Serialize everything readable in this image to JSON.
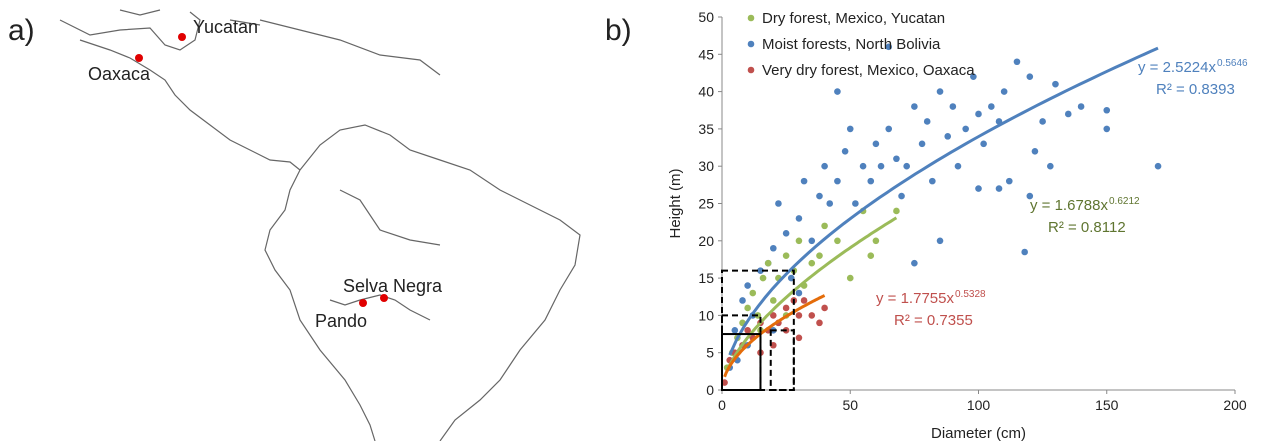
{
  "panel_labels": [
    "a)",
    "b)"
  ],
  "map": {
    "sites": [
      {
        "label": "Yucatan"
      },
      {
        "label": "Oaxaca"
      },
      {
        "label": "Selva Negra"
      },
      {
        "label": "Pando"
      }
    ]
  },
  "chart_data": {
    "type": "scatter",
    "xlabel": "Diameter (cm)",
    "ylabel": "Height (m)",
    "xlim": [
      0,
      200
    ],
    "ylim": [
      0,
      50
    ],
    "xticks": [
      0,
      50,
      100,
      150,
      200
    ],
    "yticks": [
      0,
      5,
      10,
      15,
      20,
      25,
      30,
      35,
      40,
      45,
      50
    ],
    "series": [
      {
        "name": "Dry forest, Mexico, Yucatan",
        "color": "#9bbb59",
        "x": [
          2,
          4,
          6,
          8,
          10,
          12,
          14,
          16,
          18,
          20,
          22,
          25,
          28,
          30,
          32,
          35,
          38,
          40,
          45,
          50,
          55,
          60,
          68,
          58,
          15,
          25
        ],
        "values": [
          3,
          5,
          7,
          9,
          11,
          13,
          10,
          15,
          17,
          12,
          15,
          18,
          16,
          20,
          14,
          17,
          18,
          22,
          20,
          15,
          24,
          20,
          24,
          18,
          8,
          10
        ]
      },
      {
        "name": "Moist forests, North Bolivia",
        "color": "#4f81bd",
        "x": [
          5,
          8,
          10,
          12,
          15,
          18,
          20,
          22,
          25,
          27,
          30,
          32,
          35,
          38,
          40,
          42,
          45,
          48,
          50,
          52,
          55,
          58,
          60,
          62,
          65,
          68,
          70,
          72,
          75,
          78,
          80,
          82,
          85,
          88,
          90,
          92,
          95,
          98,
          100,
          102,
          105,
          108,
          110,
          112,
          115,
          118,
          120,
          122,
          125,
          128,
          130,
          135,
          140,
          150,
          150,
          170,
          75,
          85,
          30,
          20,
          10,
          6,
          3,
          45,
          65,
          100,
          108,
          120
        ],
        "values": [
          8,
          12,
          14,
          10,
          16,
          17,
          19,
          25,
          21,
          15,
          23,
          28,
          20,
          26,
          30,
          25,
          28,
          32,
          35,
          25,
          30,
          28,
          33,
          30,
          35,
          31,
          26,
          30,
          38,
          33,
          36,
          28,
          40,
          34,
          38,
          30,
          35,
          42,
          37,
          33,
          38,
          36,
          40,
          28,
          44,
          18.5,
          42,
          32,
          36,
          30,
          41,
          37,
          38,
          37.5,
          35,
          30,
          17,
          20,
          13,
          8,
          6,
          4,
          3,
          40,
          46,
          27,
          27,
          26
        ]
      },
      {
        "name": "Very dry forest, Mexico, Oaxaca",
        "color": "#c0504d",
        "x": [
          1,
          3,
          5,
          8,
          10,
          12,
          15,
          18,
          20,
          22,
          25,
          28,
          30,
          32,
          35,
          38,
          40,
          20,
          25,
          30,
          15
        ],
        "values": [
          1,
          4,
          5,
          6,
          8,
          7,
          9,
          8,
          10,
          9,
          11,
          12,
          10,
          12,
          10,
          9,
          11,
          6,
          8,
          7,
          5
        ]
      }
    ],
    "trendlines": [
      {
        "label": "y = 1.6788x",
        "coefficient": 1.6788,
        "exponent": 0.6212,
        "r2_label": "R² = 0.8112",
        "line_color": "#9bbb59",
        "label_color": "#5f7530"
      },
      {
        "label": "y = 2.5224x",
        "coefficient": 2.5224,
        "exponent": 0.5646,
        "r2_label": "R² = 0.8393",
        "line_color": "#4f81bd",
        "label_color": "#4f81bd"
      },
      {
        "label": "y = 1.7755x",
        "coefficient": 1.7755,
        "exponent": 0.5328,
        "r2_label": "R² = 0.7355",
        "line_color": "#e46c0a",
        "label_color": "#c0504d"
      }
    ],
    "boxes": [
      {
        "x": [
          0,
          15
        ],
        "y": [
          0,
          7.5
        ],
        "dashed": false
      },
      {
        "x": [
          0,
          28
        ],
        "y": [
          0,
          16
        ],
        "dashed": true
      },
      {
        "x": [
          0,
          15
        ],
        "y": [
          0,
          10
        ],
        "dashed": true
      },
      {
        "x": [
          19,
          28
        ],
        "y": [
          0,
          8
        ],
        "dashed": true
      }
    ]
  }
}
